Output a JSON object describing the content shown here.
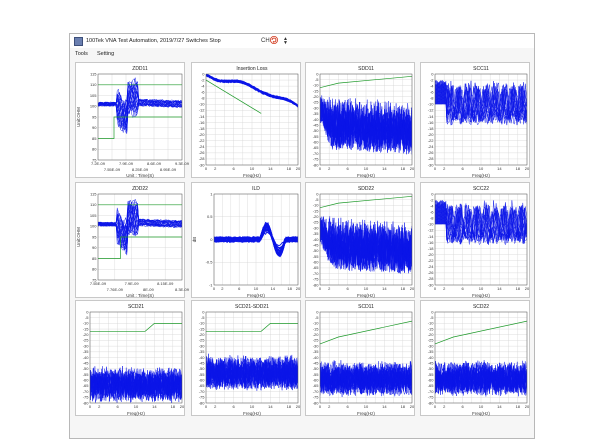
{
  "window": {
    "title": "100Tek VNA Test Automation, 2019/7/27 Switches Stop",
    "ch_label": "CH",
    "icons": {
      "app": "app-icon",
      "refresh": "refresh-icon",
      "spin": "spin-icon"
    }
  },
  "menu": {
    "items": [
      "Tools",
      "Setting"
    ]
  },
  "colors": {
    "trace": "#0b15e8",
    "limit": "#1e9a2a",
    "grid": "#d4d4d4",
    "frame": "#555555"
  },
  "chart_data": [
    {
      "id": "zdd11",
      "type": "line",
      "title": "ZDD11",
      "xlabel": "Unit : Time(S)",
      "ylabel": "Unit:OHM",
      "xticks": [
        "7.2E-09",
        "7.55E-09",
        "7.9E-09",
        "8.25E-09",
        "8.6E-09",
        "8.95E-09",
        "9.3E-09"
      ],
      "yticks": [
        "115",
        "110",
        "105",
        "100",
        "95",
        "90",
        "85",
        "80",
        "75"
      ],
      "xlim": [
        7.2,
        9.3
      ],
      "ylim": [
        75,
        115
      ],
      "limits": [
        {
          "x": [
            7.2,
            7.6,
            7.6,
            9.3
          ],
          "y": [
            110,
            110,
            110,
            110
          ]
        },
        {
          "x": [
            7.2,
            7.6,
            7.6,
            9.3
          ],
          "y": [
            85,
            85,
            95,
            95
          ]
        }
      ],
      "series_count": 28,
      "style": "tdr",
      "trace_base": 101
    },
    {
      "id": "il",
      "type": "line",
      "title": "Insertion Loss",
      "xlabel": "Freq(Hz)",
      "ylabel": "",
      "xticks": [
        "0",
        "2",
        "4",
        "6",
        "8",
        "10",
        "12",
        "14",
        "16",
        "18",
        "20"
      ],
      "yticks": [
        "0",
        "-2",
        "-4",
        "-6",
        "-8",
        "-10",
        "-12",
        "-14",
        "-16",
        "-18",
        "-20",
        "-22",
        "-24",
        "-26",
        "-28",
        "-30"
      ],
      "xlim": [
        0,
        20
      ],
      "ylim": [
        -30,
        0
      ],
      "limits": [
        {
          "x": [
            0,
            12
          ],
          "y": [
            -2,
            -13
          ]
        }
      ],
      "series_count": 20,
      "style": "il"
    },
    {
      "id": "sdd11",
      "type": "line",
      "title": "SDD11",
      "xlabel": "Freq(Hz)",
      "ylabel": "",
      "xticks": [
        "0",
        "2",
        "4",
        "6",
        "8",
        "10",
        "12",
        "14",
        "16",
        "18",
        "20"
      ],
      "yticks": [
        "0",
        "-5",
        "-10",
        "-15",
        "-20",
        "-25",
        "-30",
        "-35",
        "-40",
        "-45",
        "-50",
        "-55",
        "-60",
        "-65",
        "-70",
        "-75",
        "-80"
      ],
      "xlim": [
        0,
        20
      ],
      "ylim": [
        -80,
        0
      ],
      "limits": [
        {
          "x": [
            0,
            4,
            20
          ],
          "y": [
            -12,
            -8,
            -2
          ]
        }
      ],
      "series_count": 16,
      "style": "rl",
      "rl_top": -10,
      "rl_bot": -78
    },
    {
      "id": "scc11",
      "type": "line",
      "title": "SCC11",
      "xlabel": "Freq(Hz)",
      "ylabel": "",
      "xticks": [
        "0",
        "2",
        "4",
        "6",
        "8",
        "10",
        "12",
        "14",
        "16",
        "18",
        "20"
      ],
      "yticks": [
        "0",
        "-2",
        "-4",
        "-6",
        "-8",
        "-10",
        "-12",
        "-14",
        "-16",
        "-18",
        "-20",
        "-22",
        "-24",
        "-26",
        "-28",
        "-30"
      ],
      "xlim": [
        0,
        20
      ],
      "ylim": [
        -30,
        0
      ],
      "limits": [],
      "series_count": 16,
      "style": "cc"
    },
    {
      "id": "zdd22",
      "type": "line",
      "title": "ZDD22",
      "xlabel": "Unit : Time(S)",
      "ylabel": "Unit:OHM",
      "xticks": [
        "7.55E-09",
        "7.76E-09",
        "7.9E-09",
        "8E-09",
        "8.15E-09",
        "8.3E-09"
      ],
      "yticks": [
        "115",
        "110",
        "105",
        "100",
        "95",
        "90",
        "85",
        "80",
        "75"
      ],
      "xlim": [
        7.55,
        8.3
      ],
      "ylim": [
        75,
        115
      ],
      "limits": [
        {
          "x": [
            7.55,
            7.75,
            7.75,
            8.3
          ],
          "y": [
            110,
            110,
            110,
            110
          ]
        },
        {
          "x": [
            7.55,
            7.75,
            7.75,
            8.3
          ],
          "y": [
            85,
            85,
            95,
            95
          ]
        }
      ],
      "series_count": 28,
      "style": "tdr",
      "trace_base": 101
    },
    {
      "id": "ild",
      "type": "line",
      "title": "ILD",
      "xlabel": "Freq(Hz)",
      "ylabel": "dB",
      "xticks": [
        "0",
        "2",
        "4",
        "6",
        "8",
        "10",
        "12",
        "14",
        "16",
        "18",
        "20"
      ],
      "yticks": [
        "1",
        "0.5",
        "0",
        "-0.5",
        "-1"
      ],
      "xlim": [
        0,
        20
      ],
      "ylim": [
        -1,
        1
      ],
      "limits": [],
      "series_count": 20,
      "style": "ild"
    },
    {
      "id": "sdd22",
      "type": "line",
      "title": "SDD22",
      "xlabel": "Freq(Hz)",
      "ylabel": "",
      "xticks": [
        "0",
        "2",
        "4",
        "6",
        "8",
        "10",
        "12",
        "14",
        "16",
        "18",
        "20"
      ],
      "yticks": [
        "0",
        "-5",
        "-10",
        "-15",
        "-20",
        "-25",
        "-30",
        "-35",
        "-40",
        "-45",
        "-50",
        "-55",
        "-60",
        "-65",
        "-70",
        "-75",
        "-80"
      ],
      "xlim": [
        0,
        20
      ],
      "ylim": [
        -80,
        0
      ],
      "limits": [
        {
          "x": [
            0,
            4,
            20
          ],
          "y": [
            -12,
            -8,
            -2
          ]
        }
      ],
      "series_count": 16,
      "style": "rl",
      "rl_top": -10,
      "rl_bot": -70
    },
    {
      "id": "scc22",
      "type": "line",
      "title": "SCC22",
      "xlabel": "Freq(Hz)",
      "ylabel": "",
      "xticks": [
        "0",
        "2",
        "4",
        "6",
        "8",
        "10",
        "12",
        "14",
        "16",
        "18",
        "20"
      ],
      "yticks": [
        "0",
        "-2",
        "-4",
        "-6",
        "-8",
        "-10",
        "-12",
        "-14",
        "-16",
        "-18",
        "-20",
        "-22",
        "-24",
        "-26",
        "-28",
        "-30"
      ],
      "xlim": [
        0,
        20
      ],
      "ylim": [
        -30,
        0
      ],
      "limits": [],
      "series_count": 16,
      "style": "cc"
    },
    {
      "id": "scd21",
      "type": "line",
      "title": "SCD21",
      "xlabel": "Freq(Hz)",
      "ylabel": "",
      "xticks": [
        "0",
        "2",
        "4",
        "6",
        "8",
        "10",
        "12",
        "14",
        "16",
        "18",
        "20"
      ],
      "yticks": [
        "0",
        "-5",
        "-10",
        "-15",
        "-20",
        "-25",
        "-30",
        "-35",
        "-40",
        "-45",
        "-50",
        "-55",
        "-60",
        "-65",
        "-70",
        "-75",
        "-80"
      ],
      "xlim": [
        0,
        20
      ],
      "ylim": [
        -80,
        0
      ],
      "limits": [
        {
          "x": [
            0,
            12,
            14,
            20
          ],
          "y": [
            -17,
            -17,
            -10,
            -10
          ]
        }
      ],
      "series_count": 16,
      "style": "xt",
      "rl_top": -45,
      "rl_bot": -80
    },
    {
      "id": "scd21_sdd21",
      "type": "line",
      "title": "SCD21-SDD21",
      "xlabel": "Freq(Hz)",
      "ylabel": "",
      "xticks": [
        "0",
        "2",
        "4",
        "6",
        "8",
        "10",
        "12",
        "14",
        "16",
        "18",
        "20"
      ],
      "yticks": [
        "0",
        "-5",
        "-10",
        "-15",
        "-20",
        "-25",
        "-30",
        "-35",
        "-40",
        "-45",
        "-50",
        "-55",
        "-60",
        "-65",
        "-70",
        "-75",
        "-80"
      ],
      "xlim": [
        0,
        20
      ],
      "ylim": [
        -80,
        0
      ],
      "limits": [
        {
          "x": [
            0,
            12,
            14,
            20
          ],
          "y": [
            -17,
            -17,
            -10,
            -10
          ]
        }
      ],
      "series_count": 16,
      "style": "xt",
      "rl_top": -35,
      "rl_bot": -80
    },
    {
      "id": "scd11",
      "type": "line",
      "title": "SCD11",
      "xlabel": "Freq(Hz)",
      "ylabel": "",
      "xticks": [
        "0",
        "2",
        "4",
        "6",
        "8",
        "10",
        "12",
        "14",
        "16",
        "18",
        "20"
      ],
      "yticks": [
        "0",
        "-5",
        "-10",
        "-15",
        "-20",
        "-25",
        "-30",
        "-35",
        "-40",
        "-45",
        "-50",
        "-55",
        "-60",
        "-65",
        "-70",
        "-75",
        "-80"
      ],
      "xlim": [
        0,
        20
      ],
      "ylim": [
        -80,
        0
      ],
      "limits": [
        {
          "x": [
            0,
            4,
            20
          ],
          "y": [
            -28,
            -22,
            -8
          ]
        }
      ],
      "series_count": 16,
      "style": "xt",
      "rl_top": -40,
      "rl_bot": -80
    },
    {
      "id": "scd22",
      "type": "line",
      "title": "SCD22",
      "xlabel": "Freq(Hz)",
      "ylabel": "",
      "xticks": [
        "0",
        "2",
        "4",
        "6",
        "8",
        "10",
        "12",
        "14",
        "16",
        "18",
        "20"
      ],
      "yticks": [
        "0",
        "-5",
        "-10",
        "-15",
        "-20",
        "-25",
        "-30",
        "-35",
        "-40",
        "-45",
        "-50",
        "-55",
        "-60",
        "-65",
        "-70",
        "-75",
        "-80"
      ],
      "xlim": [
        0,
        20
      ],
      "ylim": [
        -80,
        0
      ],
      "limits": [
        {
          "x": [
            0,
            4,
            20
          ],
          "y": [
            -28,
            -22,
            -8
          ]
        }
      ],
      "series_count": 16,
      "style": "xt",
      "rl_top": -40,
      "rl_bot": -80
    }
  ]
}
